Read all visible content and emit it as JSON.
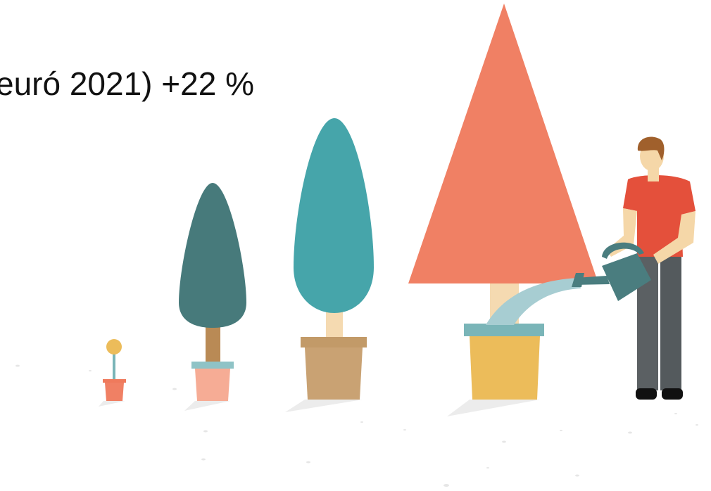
{
  "headline": "euró 2021) +22 %"
}
